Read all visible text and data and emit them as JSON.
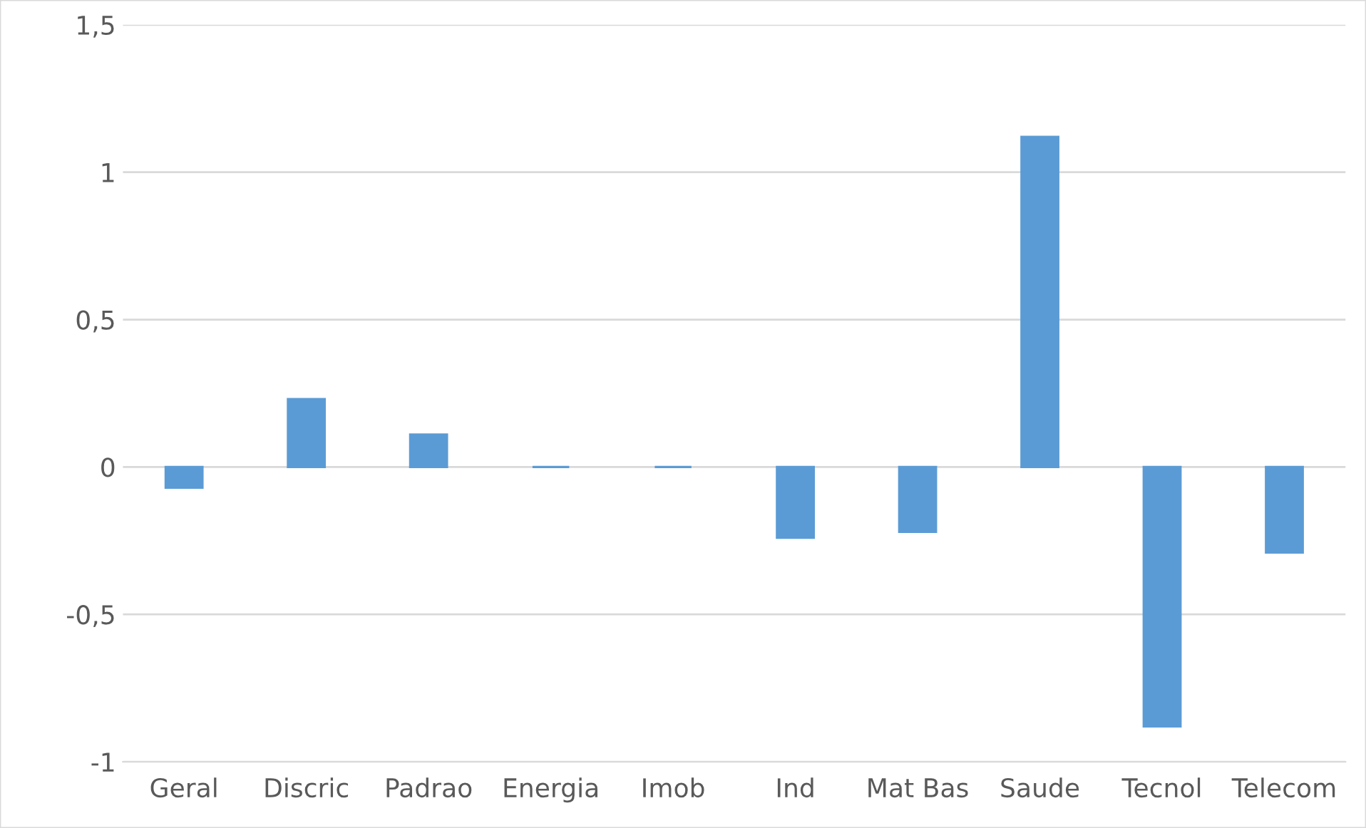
{
  "chart_data": {
    "type": "bar",
    "categories": [
      "Geral",
      "Discric",
      "Padrao",
      "Energia",
      "Imob",
      "Ind",
      "Mat Bas",
      "Saude",
      "Tecnol",
      "Telecom"
    ],
    "values": [
      -0.07,
      0.23,
      0.11,
      0,
      0,
      -0.24,
      -0.22,
      1.12,
      -0.88,
      -0.29
    ],
    "color": "#5b9bd5",
    "ylim": [
      -1,
      1.5
    ],
    "yticks": [
      {
        "value": -1,
        "label": "-1"
      },
      {
        "value": -0.5,
        "label": "-0,5"
      },
      {
        "value": 0,
        "label": "0"
      },
      {
        "value": 0.5,
        "label": "0,5"
      },
      {
        "value": 1,
        "label": "1"
      },
      {
        "value": 1.5,
        "label": "1,5"
      }
    ],
    "grid": "y"
  }
}
